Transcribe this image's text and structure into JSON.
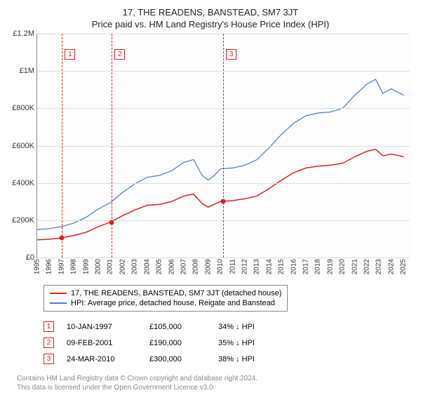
{
  "title_line1": "17, THE READENS, BANSTEAD, SM7 3JT",
  "title_line2": "Price paid vs. HM Land Registry's House Price Index (HPI)",
  "chart": {
    "type": "line",
    "background_color": "#fdfdfd",
    "axis_color": "#888888",
    "grid_color": "#dddddd",
    "x_min": 1995,
    "x_max": 2025.5,
    "y_min": 0,
    "y_max": 1200000,
    "y_ticks": [
      {
        "v": 0,
        "label": "£0"
      },
      {
        "v": 200000,
        "label": "£200K"
      },
      {
        "v": 400000,
        "label": "£400K"
      },
      {
        "v": 600000,
        "label": "£600K"
      },
      {
        "v": 800000,
        "label": "£800K"
      },
      {
        "v": 1000000,
        "label": "£1M"
      },
      {
        "v": 1200000,
        "label": "£1.2M"
      }
    ],
    "x_ticks": [
      1995,
      1996,
      1997,
      1998,
      1999,
      2000,
      2001,
      2002,
      2003,
      2004,
      2005,
      2006,
      2007,
      2008,
      2009,
      2010,
      2011,
      2012,
      2013,
      2014,
      2015,
      2016,
      2017,
      2018,
      2019,
      2020,
      2021,
      2022,
      2023,
      2024,
      2025
    ],
    "series": [
      {
        "name": "17, THE READENS, BANSTEAD, SM7 3JT (detached house)",
        "color": "#e02020",
        "width": 1.5,
        "data": [
          [
            1995,
            95000
          ],
          [
            1996,
            98000
          ],
          [
            1997,
            105000
          ],
          [
            1998,
            118000
          ],
          [
            1999,
            135000
          ],
          [
            2000,
            165000
          ],
          [
            2001,
            190000
          ],
          [
            2002,
            225000
          ],
          [
            2003,
            255000
          ],
          [
            2004,
            280000
          ],
          [
            2005,
            285000
          ],
          [
            2006,
            300000
          ],
          [
            2007,
            330000
          ],
          [
            2007.8,
            340000
          ],
          [
            2008.5,
            290000
          ],
          [
            2009,
            270000
          ],
          [
            2009.5,
            285000
          ],
          [
            2010,
            300000
          ],
          [
            2011,
            305000
          ],
          [
            2012,
            315000
          ],
          [
            2013,
            330000
          ],
          [
            2014,
            370000
          ],
          [
            2015,
            415000
          ],
          [
            2016,
            455000
          ],
          [
            2017,
            480000
          ],
          [
            2018,
            490000
          ],
          [
            2019,
            495000
          ],
          [
            2020,
            505000
          ],
          [
            2021,
            540000
          ],
          [
            2022,
            570000
          ],
          [
            2022.7,
            580000
          ],
          [
            2023.3,
            545000
          ],
          [
            2024,
            555000
          ],
          [
            2025,
            540000
          ]
        ]
      },
      {
        "name": "HPI: Average price, detached house, Reigate and Banstead",
        "color": "#4a78c8",
        "width": 1.2,
        "data": [
          [
            1995,
            150000
          ],
          [
            1996,
            155000
          ],
          [
            1997,
            165000
          ],
          [
            1998,
            185000
          ],
          [
            1999,
            215000
          ],
          [
            2000,
            260000
          ],
          [
            2001,
            295000
          ],
          [
            2002,
            350000
          ],
          [
            2003,
            395000
          ],
          [
            2004,
            430000
          ],
          [
            2005,
            440000
          ],
          [
            2006,
            465000
          ],
          [
            2007,
            510000
          ],
          [
            2007.8,
            525000
          ],
          [
            2008.5,
            440000
          ],
          [
            2009,
            415000
          ],
          [
            2009.5,
            440000
          ],
          [
            2010,
            475000
          ],
          [
            2011,
            480000
          ],
          [
            2012,
            495000
          ],
          [
            2013,
            525000
          ],
          [
            2014,
            590000
          ],
          [
            2015,
            660000
          ],
          [
            2016,
            720000
          ],
          [
            2017,
            760000
          ],
          [
            2018,
            775000
          ],
          [
            2019,
            780000
          ],
          [
            2020,
            800000
          ],
          [
            2021,
            870000
          ],
          [
            2022,
            930000
          ],
          [
            2022.7,
            955000
          ],
          [
            2023.3,
            880000
          ],
          [
            2024,
            905000
          ],
          [
            2025,
            870000
          ]
        ]
      }
    ],
    "event_lines": [
      {
        "id": "1",
        "x": 1997.03,
        "y": 105000,
        "color": "#e02020"
      },
      {
        "id": "2",
        "x": 2001.11,
        "y": 190000,
        "color": "#e02020"
      },
      {
        "id": "3",
        "x": 2010.23,
        "y": 300000,
        "color": "#e02020"
      }
    ]
  },
  "legend": {
    "items": [
      {
        "color": "#e02020",
        "label": "17, THE READENS, BANSTEAD, SM7 3JT (detached house)"
      },
      {
        "color": "#4a78c8",
        "label": "HPI: Average price, detached house, Reigate and Banstead"
      }
    ]
  },
  "events": [
    {
      "id": "1",
      "color": "#e02020",
      "date": "10-JAN-1997",
      "price": "£105,000",
      "delta": "34% ↓ HPI"
    },
    {
      "id": "2",
      "color": "#e02020",
      "date": "09-FEB-2001",
      "price": "£190,000",
      "delta": "35% ↓ HPI"
    },
    {
      "id": "3",
      "color": "#e02020",
      "date": "24-MAR-2010",
      "price": "£300,000",
      "delta": "38% ↓ HPI"
    }
  ],
  "footer_line1": "Contains HM Land Registry data © Crown copyright and database right 2024.",
  "footer_line2": "This data is licensed under the Open Government Licence v3.0."
}
